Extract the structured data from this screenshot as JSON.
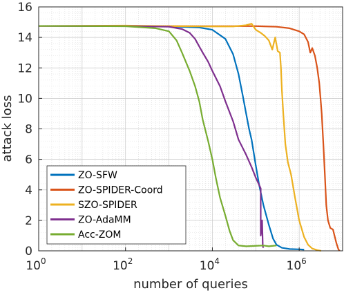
{
  "chart_data": {
    "type": "line",
    "title": "",
    "xlabel": "number of queries",
    "ylabel": "attack loss",
    "xscale": "log",
    "xlim": [
      1,
      10000000
    ],
    "ylim": [
      0,
      16
    ],
    "grid": true,
    "legend_position": "bottom-left",
    "x_ticks": [
      {
        "value": 1,
        "base": "10",
        "exp": "0"
      },
      {
        "value": 100,
        "base": "10",
        "exp": "2"
      },
      {
        "value": 10000,
        "base": "10",
        "exp": "4"
      },
      {
        "value": 1000000,
        "base": "10",
        "exp": "6"
      }
    ],
    "y_ticks": [
      {
        "value": 0,
        "label": "0"
      },
      {
        "value": 2,
        "label": "2"
      },
      {
        "value": 4,
        "label": "4"
      },
      {
        "value": 6,
        "label": "6"
      },
      {
        "value": 8,
        "label": "8"
      },
      {
        "value": 10,
        "label": "10"
      },
      {
        "value": 12,
        "label": "12"
      },
      {
        "value": 14,
        "label": "14"
      },
      {
        "value": 16,
        "label": "16"
      }
    ],
    "series": [
      {
        "name": "ZO-SFW",
        "color": "#0072BD",
        "points": [
          [
            1,
            14.75
          ],
          [
            100,
            14.74
          ],
          [
            1000,
            14.72
          ],
          [
            5000,
            14.65
          ],
          [
            10000,
            14.5
          ],
          [
            20000,
            13.9
          ],
          [
            30000,
            12.9
          ],
          [
            40000,
            11.6
          ],
          [
            50000,
            10.2
          ],
          [
            60000,
            9.0
          ],
          [
            70000,
            8.0
          ],
          [
            80000,
            7.3
          ],
          [
            100000,
            5.6
          ],
          [
            120000,
            4.3
          ],
          [
            150000,
            3.0
          ],
          [
            200000,
            1.7
          ],
          [
            250000,
            0.8
          ],
          [
            300000,
            0.4
          ],
          [
            400000,
            0.2
          ],
          [
            600000,
            0.12
          ],
          [
            1000000,
            0.1
          ],
          [
            1300000,
            0.08
          ]
        ]
      },
      {
        "name": "ZO-SPIDER-Coord",
        "color": "#D95319",
        "points": [
          [
            1,
            14.75
          ],
          [
            1000,
            14.74
          ],
          [
            10000,
            14.74
          ],
          [
            100000,
            14.74
          ],
          [
            300000,
            14.7
          ],
          [
            600000,
            14.6
          ],
          [
            1000000,
            14.4
          ],
          [
            1300000,
            14.2
          ],
          [
            1600000,
            13.7
          ],
          [
            1800000,
            13.0
          ],
          [
            2000000,
            13.3
          ],
          [
            2300000,
            12.8
          ],
          [
            2600000,
            12.0
          ],
          [
            2900000,
            11.0
          ],
          [
            3100000,
            10.0
          ],
          [
            3300000,
            9.0
          ],
          [
            3600000,
            7.0
          ],
          [
            3900000,
            5.0
          ],
          [
            4200000,
            3.0
          ],
          [
            4600000,
            2.0
          ],
          [
            5200000,
            1.5
          ],
          [
            6000000,
            1.4
          ],
          [
            6500000,
            1.0
          ],
          [
            7200000,
            0.5
          ],
          [
            8000000,
            0.1
          ],
          [
            8500000,
            0.0
          ]
        ]
      },
      {
        "name": "SZO-SPIDER",
        "color": "#EDB120",
        "points": [
          [
            1,
            14.75
          ],
          [
            100,
            14.78
          ],
          [
            1000,
            14.74
          ],
          [
            10000,
            14.72
          ],
          [
            30000,
            14.72
          ],
          [
            60000,
            14.8
          ],
          [
            80000,
            14.9
          ],
          [
            100000,
            14.5
          ],
          [
            130000,
            14.3
          ],
          [
            160000,
            14.1
          ],
          [
            200000,
            13.8
          ],
          [
            240000,
            13.2
          ],
          [
            280000,
            14.0
          ],
          [
            320000,
            13.1
          ],
          [
            360000,
            13.0
          ],
          [
            380000,
            12.0
          ],
          [
            400000,
            10.5
          ],
          [
            430000,
            9.0
          ],
          [
            480000,
            7.0
          ],
          [
            550000,
            5.8
          ],
          [
            650000,
            5.0
          ],
          [
            800000,
            3.5
          ],
          [
            1000000,
            2.0
          ],
          [
            1300000,
            0.9
          ],
          [
            1600000,
            0.4
          ],
          [
            2000000,
            0.15
          ],
          [
            2600000,
            0.05
          ],
          [
            3200000,
            0.0
          ]
        ]
      },
      {
        "name": "ZO-AdaMM",
        "color": "#7E2F8E",
        "points": [
          [
            1,
            14.75
          ],
          [
            100,
            14.74
          ],
          [
            1000,
            14.7
          ],
          [
            2000,
            14.55
          ],
          [
            3000,
            14.3
          ],
          [
            4000,
            13.9
          ],
          [
            5000,
            13.4
          ],
          [
            6000,
            13.0
          ],
          [
            8000,
            12.4
          ],
          [
            10000,
            11.8
          ],
          [
            15000,
            10.8
          ],
          [
            20000,
            9.8
          ],
          [
            30000,
            8.5
          ],
          [
            40000,
            7.3
          ],
          [
            60000,
            6.3
          ],
          [
            80000,
            5.5
          ],
          [
            100000,
            4.8
          ],
          [
            130000,
            4.1
          ],
          [
            130001,
            1.0
          ],
          [
            140000,
            2.0
          ],
          [
            145000,
            0.3
          ],
          [
            150000,
            0.2
          ]
        ]
      },
      {
        "name": "Acc-ZOM",
        "color": "#77AC30",
        "points": [
          [
            1,
            14.75
          ],
          [
            100,
            14.73
          ],
          [
            500,
            14.6
          ],
          [
            1000,
            14.4
          ],
          [
            1500,
            13.8
          ],
          [
            2000,
            13.0
          ],
          [
            3000,
            11.8
          ],
          [
            4000,
            10.8
          ],
          [
            5000,
            9.8
          ],
          [
            6000,
            8.6
          ],
          [
            8000,
            7.2
          ],
          [
            10000,
            6.0
          ],
          [
            12000,
            4.8
          ],
          [
            15000,
            3.5
          ],
          [
            20000,
            2.3
          ],
          [
            25000,
            1.3
          ],
          [
            30000,
            0.7
          ],
          [
            40000,
            0.35
          ],
          [
            60000,
            0.3
          ],
          [
            100000,
            0.33
          ],
          [
            150000,
            0.35
          ],
          [
            200000,
            0.3
          ],
          [
            300000,
            0.35
          ]
        ]
      }
    ]
  }
}
